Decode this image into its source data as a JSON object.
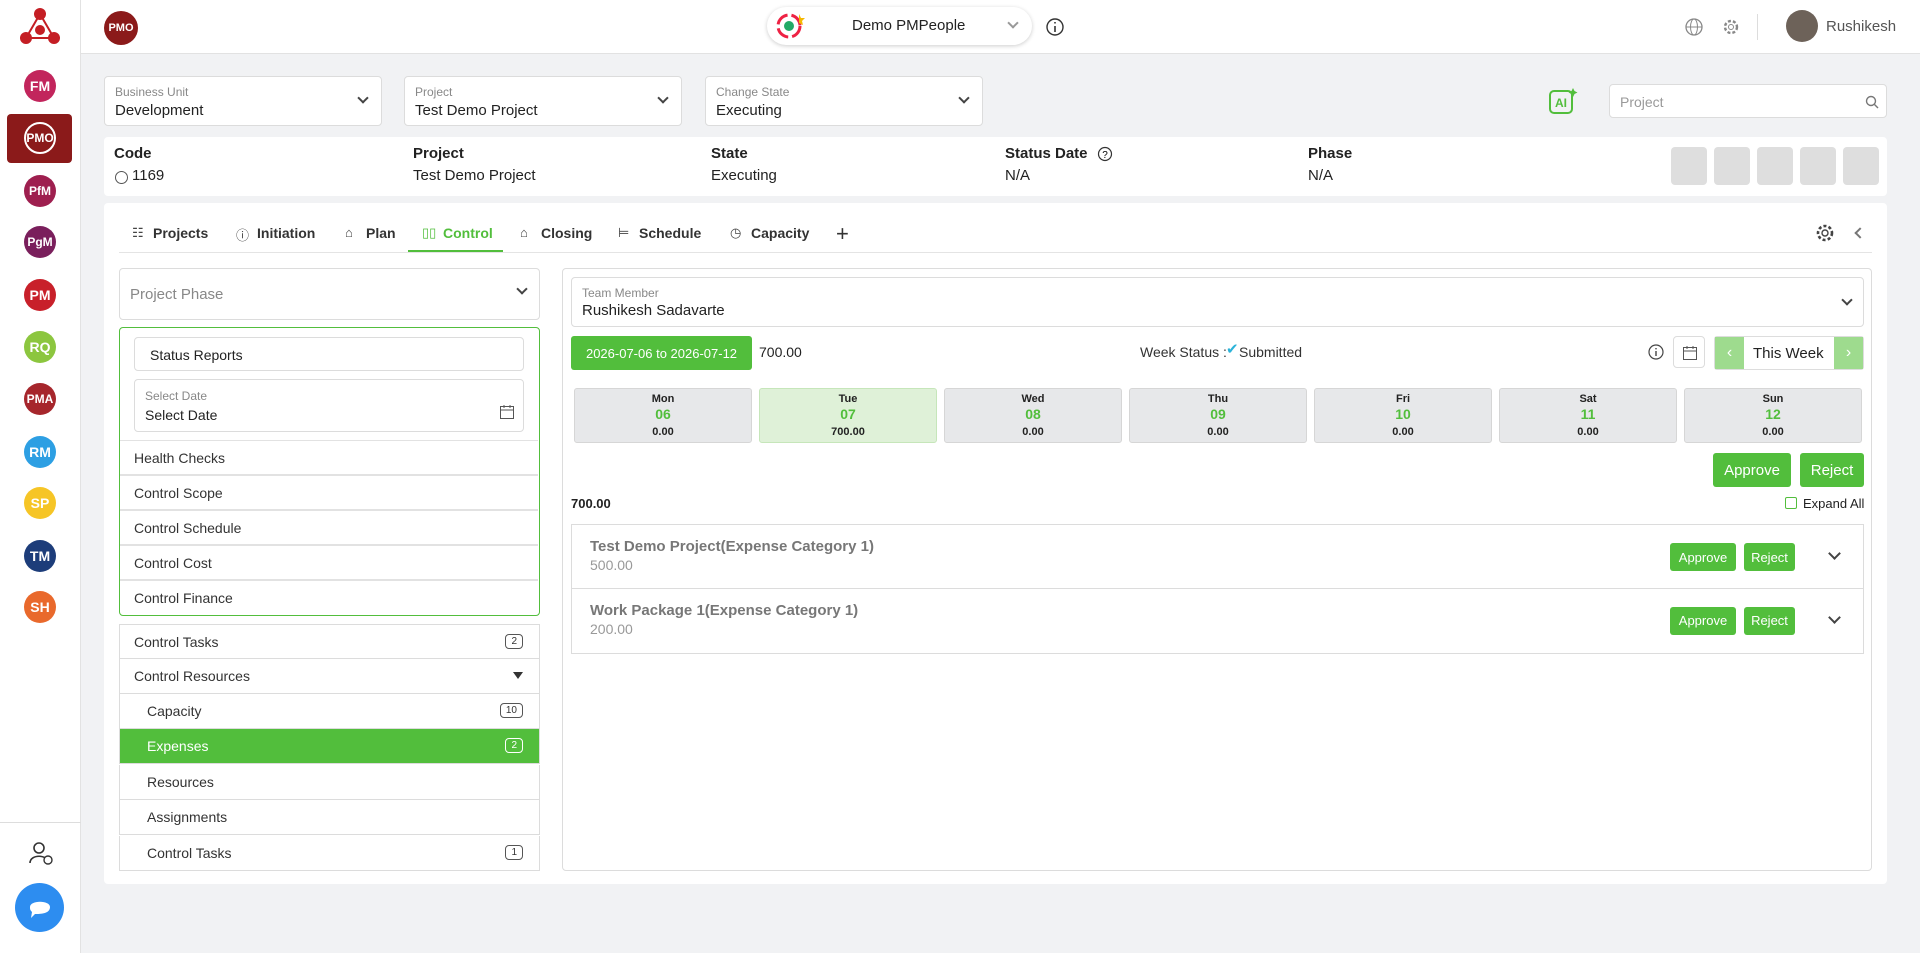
{
  "sidebar": {
    "apps": [
      {
        "label": "FM",
        "color": "#c2255c"
      },
      {
        "label": "PMO",
        "color": "#8b1a1a"
      },
      {
        "label": "PfM",
        "color": "#9e1f4f"
      },
      {
        "label": "PgM",
        "color": "#7a1f5c"
      },
      {
        "label": "PM",
        "color": "#c8202a"
      },
      {
        "label": "RQ",
        "color": "#8cc63f"
      },
      {
        "label": "PMA",
        "color": "#a6262c"
      },
      {
        "label": "RM",
        "color": "#2d9fe3"
      },
      {
        "label": "SP",
        "color": "#f6c526"
      },
      {
        "label": "TM",
        "color": "#1d3d7a"
      },
      {
        "label": "SH",
        "color": "#e9692c"
      }
    ]
  },
  "header": {
    "logo": "PMO",
    "workspace": "Demo PMPeople",
    "user": "Rushikesh"
  },
  "filters": [
    {
      "label": "Business Unit",
      "value": "Development"
    },
    {
      "label": "Project",
      "value": "Test Demo Project"
    },
    {
      "label": "Change State",
      "value": "Executing"
    }
  ],
  "search_placeholder": "Project",
  "ai_label": "AI",
  "summary": [
    {
      "label": "Code",
      "value": "1169"
    },
    {
      "label": "Project",
      "value": "Test Demo Project"
    },
    {
      "label": "State",
      "value": "Executing"
    },
    {
      "label": "Status Date",
      "value": "N/A"
    },
    {
      "label": "Phase",
      "value": "N/A"
    }
  ],
  "tabs": [
    "Projects",
    "Initiation",
    "Plan",
    "Control",
    "Closing",
    "Schedule",
    "Capacity"
  ],
  "left": {
    "phase": "Project Phase",
    "status_reports": "Status Reports",
    "date_label": "Select Date",
    "date_value": "Select Date",
    "menu": [
      "Health Checks",
      "Control Scope",
      "Control Schedule",
      "Control Cost",
      "Control Finance"
    ],
    "control_tasks": {
      "label": "Control Tasks",
      "count": "2"
    },
    "control_resources": "Control Resources",
    "resources_menu": [
      {
        "label": "Capacity",
        "count": "10"
      },
      {
        "label": "Expenses",
        "count": "2"
      },
      {
        "label": "Resources"
      },
      {
        "label": "Assignments"
      },
      {
        "label": "Control Tasks",
        "count": "1"
      }
    ]
  },
  "right": {
    "team_member_label": "Team Member",
    "team_member": "Rushikesh Sadavarte",
    "date_range": "2026-07-06 to 2026-07-12",
    "week_total": "700.00",
    "week_status_label": "Week Status :",
    "week_status": "Submitted",
    "this_week": "This Week",
    "days": [
      {
        "day": "Mon",
        "date": "06",
        "amount": "0.00"
      },
      {
        "day": "Tue",
        "date": "07",
        "amount": "700.00"
      },
      {
        "day": "Wed",
        "date": "08",
        "amount": "0.00"
      },
      {
        "day": "Thu",
        "date": "09",
        "amount": "0.00"
      },
      {
        "day": "Fri",
        "date": "10",
        "amount": "0.00"
      },
      {
        "day": "Sat",
        "date": "11",
        "amount": "0.00"
      },
      {
        "day": "Sun",
        "date": "12",
        "amount": "0.00"
      }
    ],
    "approve": "Approve",
    "reject": "Reject",
    "total": "700.00",
    "expand_all": "Expand All",
    "items": [
      {
        "title": "Test Demo Project(Expense Category 1)",
        "amount": "500.00"
      },
      {
        "title": "Work Package 1(Expense Category 1)",
        "amount": "200.00"
      }
    ]
  }
}
